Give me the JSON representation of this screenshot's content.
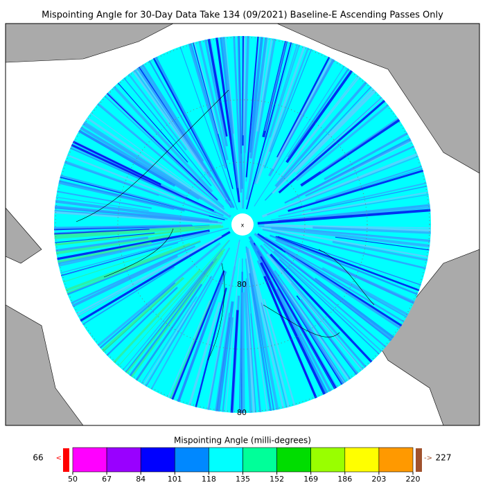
{
  "title": "Mispointing Angle for 30-Day Data Take 134 (09/2021) Baseline-E Ascending Passes Only",
  "map": {
    "latitude_labels": [
      "80",
      "80"
    ]
  },
  "colorbar": {
    "label": "Mispointing Angle (milli-degrees)",
    "ticks": [
      50,
      67,
      84,
      101,
      118,
      135,
      152,
      169,
      186,
      203,
      220
    ],
    "colors": [
      "#ff00ff",
      "#9900ff",
      "#0000ff",
      "#0088ff",
      "#00ffff",
      "#00ff99",
      "#00dd00",
      "#99ff00",
      "#ffff00",
      "#ff9900"
    ],
    "under_color": "#ff0000",
    "over_color": "#a0522d",
    "min_value": 66,
    "max_value": 227
  }
}
